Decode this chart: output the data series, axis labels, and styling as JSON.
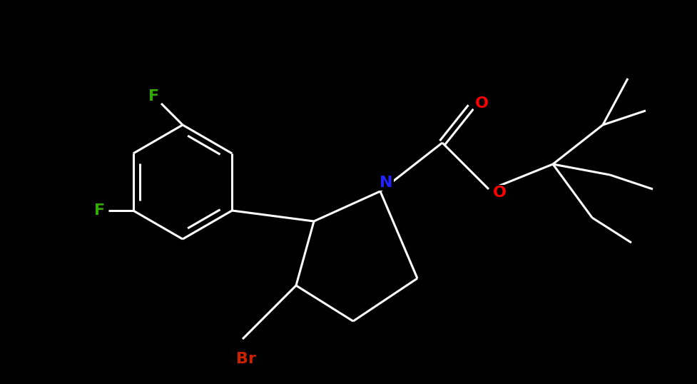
{
  "background_color": "#000000",
  "bond_color": "#ffffff",
  "atom_colors": {
    "F": "#33aa00",
    "N": "#2222ff",
    "O": "#ff0000",
    "Br": "#cc2200",
    "C": "#ffffff"
  },
  "figsize": [
    9.77,
    5.38
  ],
  "dpi": 100,
  "lw": 2.2,
  "fontsize": 16
}
